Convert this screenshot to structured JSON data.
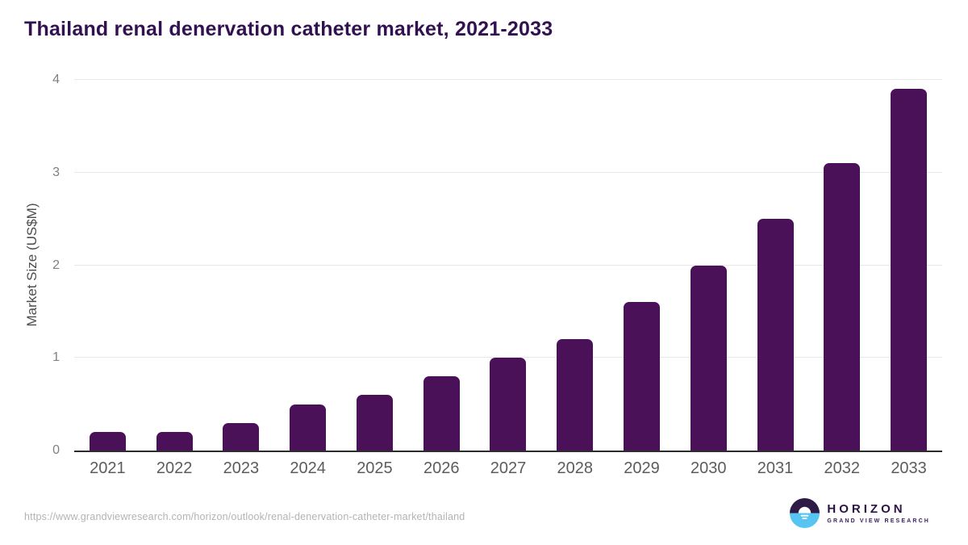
{
  "header": {
    "title": "Thailand renal denervation catheter market, 2021-2033"
  },
  "chart_data": {
    "type": "bar",
    "title": "Thailand renal denervation catheter market, 2021-2033",
    "categories": [
      "2021",
      "2022",
      "2023",
      "2024",
      "2025",
      "2026",
      "2027",
      "2028",
      "2029",
      "2030",
      "2031",
      "2032",
      "2033"
    ],
    "values": [
      0.2,
      0.2,
      0.3,
      0.5,
      0.6,
      0.8,
      1.0,
      1.2,
      1.6,
      2.0,
      2.5,
      3.1,
      3.9
    ],
    "xlabel": "",
    "ylabel": "Market Size (US$M)",
    "ylim": [
      0,
      4
    ],
    "yticks": [
      0,
      1,
      2,
      3,
      4
    ],
    "grid": "horizontal",
    "legend": "none",
    "bar_color": "#4a1158"
  },
  "colors": {
    "title_text": "#321150",
    "bar": "#4a1158",
    "gridline": "#e8e8e8",
    "axis_line": "#2d2d2d",
    "x_tick_text": "#5c5c5c",
    "y_tick_text": "#808080",
    "url_text": "#b3b3b3",
    "logo_purple": "#2e1a47",
    "logo_blue": "#58c4f1",
    "logo_text": "#2a1445",
    "logo_subtext": "#3d2063"
  },
  "footer": {
    "source_url": "https://www.grandviewresearch.com/horizon/outlook/renal-denervation-catheter-market/thailand",
    "logo": {
      "title": "HORIZON",
      "subtitle": "GRAND VIEW RESEARCH"
    }
  }
}
